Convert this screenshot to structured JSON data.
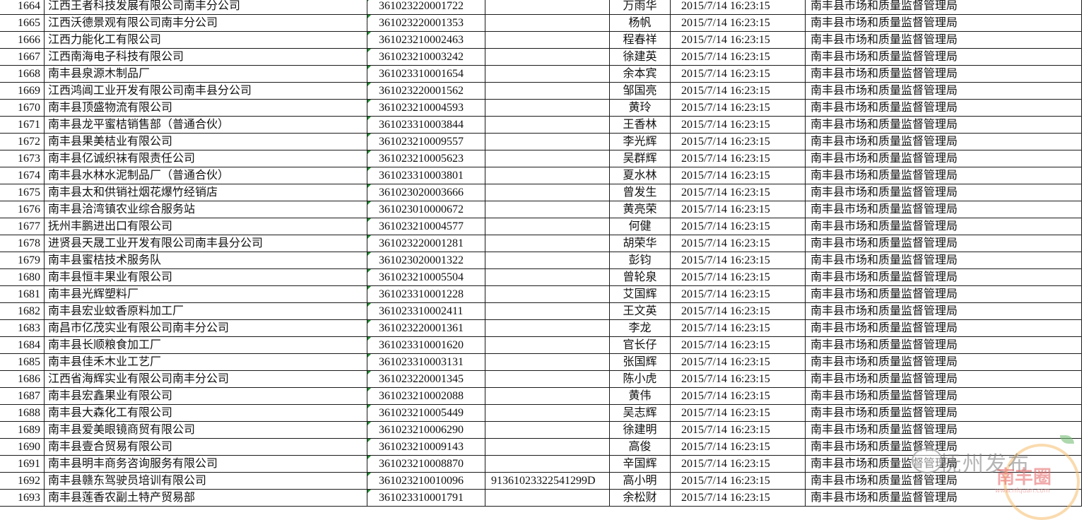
{
  "rows": [
    {
      "no": "1664",
      "company": "江西王者科技发展有限公司南丰分公司",
      "reg": "361023220001722",
      "credit": "",
      "person": "万雨华",
      "date": "2015/7/14 16:23:15",
      "org": "南丰县市场和质量监督管理局"
    },
    {
      "no": "1665",
      "company": "江西沃德景观有限公司南丰分公司",
      "reg": "361023220001353",
      "credit": "",
      "person": "杨帆",
      "date": "2015/7/14 16:23:15",
      "org": "南丰县市场和质量监督管理局"
    },
    {
      "no": "1666",
      "company": "江西力能化工有限公司",
      "reg": "361023210002463",
      "credit": "",
      "person": "程春祥",
      "date": "2015/7/14 16:23:15",
      "org": "南丰县市场和质量监督管理局"
    },
    {
      "no": "1667",
      "company": "江西南海电子科技有限公司",
      "reg": "361023210003242",
      "credit": "",
      "person": "徐建英",
      "date": "2015/7/14 16:23:15",
      "org": "南丰县市场和质量监督管理局"
    },
    {
      "no": "1668",
      "company": "南丰县泉源木制品厂",
      "reg": "361023310001654",
      "credit": "",
      "person": "余本宾",
      "date": "2015/7/14 16:23:15",
      "org": "南丰县市场和质量监督管理局"
    },
    {
      "no": "1669",
      "company": "江西鸿阊工业开发有限公司南丰县分公司",
      "reg": "361023220001562",
      "credit": "",
      "person": "邹国亮",
      "date": "2015/7/14 16:23:15",
      "org": "南丰县市场和质量监督管理局"
    },
    {
      "no": "1670",
      "company": "南丰县顶盛物流有限公司",
      "reg": "361023210004593",
      "credit": "",
      "person": "黄玲",
      "date": "2015/7/14 16:23:15",
      "org": "南丰县市场和质量监督管理局"
    },
    {
      "no": "1671",
      "company": "南丰县龙平蜜桔销售部（普通合伙）",
      "reg": "361023310003844",
      "credit": "",
      "person": "王香林",
      "date": "2015/7/14 16:23:15",
      "org": "南丰县市场和质量监督管理局"
    },
    {
      "no": "1672",
      "company": "南丰县果美桔业有限公司",
      "reg": "361023210009557",
      "credit": "",
      "person": "李光辉",
      "date": "2015/7/14 16:23:15",
      "org": "南丰县市场和质量监督管理局"
    },
    {
      "no": "1673",
      "company": "南丰县亿诚织袜有限责任公司",
      "reg": "361023210005623",
      "credit": "",
      "person": "吴群辉",
      "date": "2015/7/14 16:23:15",
      "org": "南丰县市场和质量监督管理局"
    },
    {
      "no": "1674",
      "company": "南丰县水林水泥制品厂（普通合伙）",
      "reg": "361023310003801",
      "credit": "",
      "person": "夏水林",
      "date": "2015/7/14 16:23:15",
      "org": "南丰县市场和质量监督管理局"
    },
    {
      "no": "1675",
      "company": "南丰县太和供销社烟花爆竹经销店",
      "reg": "361023020003666",
      "credit": "",
      "person": "曾发生",
      "date": "2015/7/14 16:23:15",
      "org": "南丰县市场和质量监督管理局"
    },
    {
      "no": "1676",
      "company": "南丰县洽湾镇农业综合服务站",
      "reg": "361023010000672",
      "credit": "",
      "person": "黄亮荣",
      "date": "2015/7/14 16:23:15",
      "org": "南丰县市场和质量监督管理局"
    },
    {
      "no": "1677",
      "company": "抚州丰鹏进出口有限公司",
      "reg": "361023210004577",
      "credit": "",
      "person": "何健",
      "date": "2015/7/14 16:23:15",
      "org": "南丰县市场和质量监督管理局"
    },
    {
      "no": "1678",
      "company": "进贤县天晟工业开发有限公司南丰县分公司",
      "reg": "361023220001281",
      "credit": "",
      "person": "胡荣华",
      "date": "2015/7/14 16:23:15",
      "org": "南丰县市场和质量监督管理局"
    },
    {
      "no": "1679",
      "company": "南丰县蜜桔技术服务队",
      "reg": "361023020001322",
      "credit": "",
      "person": "彭钧",
      "date": "2015/7/14 16:23:15",
      "org": "南丰县市场和质量监督管理局"
    },
    {
      "no": "1680",
      "company": "南丰县恒丰果业有限公司",
      "reg": "361023210005504",
      "credit": "",
      "person": "曾轮泉",
      "date": "2015/7/14 16:23:15",
      "org": "南丰县市场和质量监督管理局"
    },
    {
      "no": "1681",
      "company": "南丰县光辉塑料厂",
      "reg": "361023310001228",
      "credit": "",
      "person": "艾国辉",
      "date": "2015/7/14 16:23:15",
      "org": "南丰县市场和质量监督管理局"
    },
    {
      "no": "1682",
      "company": "南丰县宏业蚊香原料加工厂",
      "reg": "361023310002411",
      "credit": "",
      "person": "王文英",
      "date": "2015/7/14 16:23:15",
      "org": "南丰县市场和质量监督管理局"
    },
    {
      "no": "1683",
      "company": "南昌市亿茂实业有限公司南丰分公司",
      "reg": "361023220001361",
      "credit": "",
      "person": "李龙",
      "date": "2015/7/14 16:23:15",
      "org": "南丰县市场和质量监督管理局"
    },
    {
      "no": "1684",
      "company": "南丰县长顺粮食加工厂",
      "reg": "361023310001620",
      "credit": "",
      "person": "官长仔",
      "date": "2015/7/14 16:23:15",
      "org": "南丰县市场和质量监督管理局"
    },
    {
      "no": "1685",
      "company": "南丰县佳禾木业工艺厂",
      "reg": "361023310003131",
      "credit": "",
      "person": "张国辉",
      "date": "2015/7/14 16:23:15",
      "org": "南丰县市场和质量监督管理局"
    },
    {
      "no": "1686",
      "company": "江西省海辉实业有限公司南丰分公司",
      "reg": "361023220001345",
      "credit": "",
      "person": "陈小虎",
      "date": "2015/7/14 16:23:15",
      "org": "南丰县市场和质量监督管理局"
    },
    {
      "no": "1687",
      "company": "南丰县宏鑫果业有限公司",
      "reg": "361023210002088",
      "credit": "",
      "person": "黄伟",
      "date": "2015/7/14 16:23:15",
      "org": "南丰县市场和质量监督管理局"
    },
    {
      "no": "1688",
      "company": "南丰县大森化工有限公司",
      "reg": "361023210005449",
      "credit": "",
      "person": "吴志辉",
      "date": "2015/7/14 16:23:15",
      "org": "南丰县市场和质量监督管理局"
    },
    {
      "no": "1689",
      "company": "南丰县爱美眼镜商贸有限公司",
      "reg": "361023210006290",
      "credit": "",
      "person": "徐建明",
      "date": "2015/7/14 16:23:15",
      "org": "南丰县市场和质量监督管理局"
    },
    {
      "no": "1690",
      "company": "南丰县壹合贸易有限公司",
      "reg": "361023210009143",
      "credit": "",
      "person": "高俊",
      "date": "2015/7/14 16:23:15",
      "org": "南丰县市场和质量监督管理局"
    },
    {
      "no": "1691",
      "company": "南丰县明丰商务咨询服务有限公司",
      "reg": "361023210008870",
      "credit": "",
      "person": "辛国辉",
      "date": "2015/7/14 16:23:15",
      "org": "南丰县市场和质量监督管理局"
    },
    {
      "no": "1692",
      "company": "南丰县赣东驾驶员培训有限公司",
      "reg": "361023210010096",
      "credit": "91361023322541299D",
      "person": "高小明",
      "date": "2015/7/14 16:23:15",
      "org": "南丰县市场和质量监督管理局"
    },
    {
      "no": "1693",
      "company": "南丰县莲香农副土特产贸易部",
      "reg": "361023310001791",
      "credit": "",
      "person": "余松财",
      "date": "2015/7/14 16:23:15",
      "org": "南丰县市场和质量监督管理局"
    }
  ],
  "watermark": {
    "source": "抚州发布",
    "logo": "南丰圈",
    "url": "www.nfquan.com"
  }
}
